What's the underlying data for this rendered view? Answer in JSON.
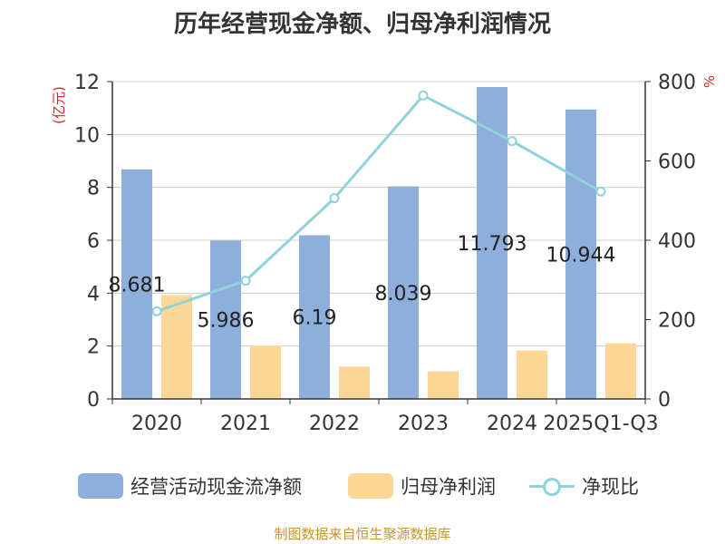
{
  "colors": {
    "bar_cash": "#8eaedb",
    "bar_profit": "#fed796",
    "line": "#8fd3da",
    "title": "#333333",
    "axis_unit": "#e02020",
    "source": "#c8962a"
  },
  "chart_data": {
    "type": "bar",
    "title": "历年经营现金净额、归母净利润情况",
    "left_unit": "(亿元)",
    "right_unit": "%",
    "categories": [
      "2020",
      "2021",
      "2022",
      "2023",
      "2024",
      "2025Q1-Q3"
    ],
    "ylim_left": [
      0,
      12
    ],
    "yticks_left": [
      "0",
      "2",
      "4",
      "6",
      "8",
      "10",
      "12"
    ],
    "ylim_right": [
      0,
      800
    ],
    "yticks_right": [
      "0",
      "200",
      "400",
      "600",
      "800"
    ],
    "series": [
      {
        "name": "经营活动现金流净额",
        "type": "bar",
        "axis": "left",
        "values": [
          8.681,
          5.986,
          6.19,
          8.039,
          11.793,
          10.944
        ],
        "labels": [
          "8.681",
          "5.986",
          "6.19",
          "8.039",
          "11.793",
          "10.944"
        ]
      },
      {
        "name": "归母净利润",
        "type": "bar",
        "axis": "left",
        "values": [
          3.93,
          2.02,
          1.22,
          1.05,
          1.83,
          2.1
        ]
      },
      {
        "name": "净现比",
        "type": "line",
        "axis": "right",
        "values": [
          221,
          298,
          506,
          765,
          650,
          523
        ]
      }
    ],
    "grid": true,
    "legend_position": "bottom"
  },
  "source": "制图数据来自恒生聚源数据库"
}
